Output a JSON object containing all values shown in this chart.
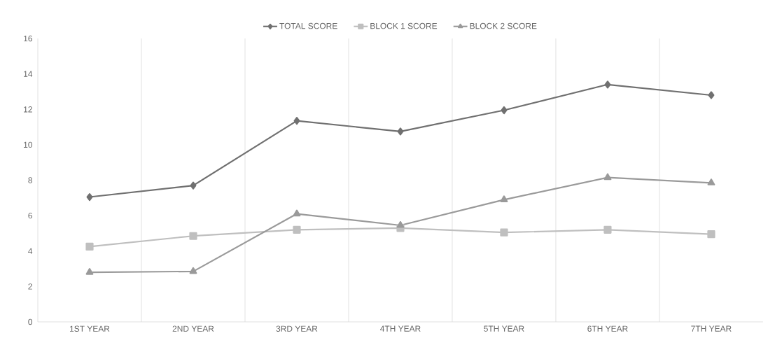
{
  "chart_data": {
    "type": "line",
    "categories": [
      "1ST YEAR",
      "2ND YEAR",
      "3RD YEAR",
      "4TH YEAR",
      "5TH YEAR",
      "6TH YEAR",
      "7TH YEAR"
    ],
    "series": [
      {
        "name": "TOTAL SCORE",
        "color": "#707070",
        "marker": "diamond",
        "values": [
          7.05,
          7.7,
          11.35,
          10.75,
          11.95,
          13.4,
          12.8
        ]
      },
      {
        "name": "BLOCK 1 SCORE",
        "color": "#bfbfbf",
        "marker": "square",
        "values": [
          4.25,
          4.85,
          5.2,
          5.3,
          5.05,
          5.2,
          4.95
        ]
      },
      {
        "name": "BLOCK 2 SCORE",
        "color": "#9a9a9a",
        "marker": "triangle",
        "values": [
          2.8,
          2.85,
          6.1,
          5.45,
          6.9,
          8.15,
          7.85
        ]
      }
    ],
    "ylim": [
      0,
      16
    ],
    "yticks": [
      0,
      2,
      4,
      6,
      8,
      10,
      12,
      14,
      16
    ],
    "grid": "x",
    "legend": "top",
    "line_style": "solid"
  }
}
